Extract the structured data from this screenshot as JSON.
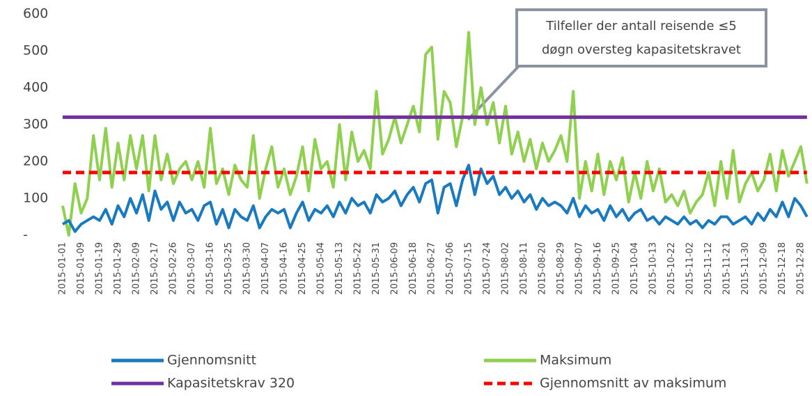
{
  "chart_data": {
    "type": "line",
    "categories": [
      "2015-01-01",
      null,
      null,
      "2015-01-09",
      null,
      null,
      "2015-01-19",
      null,
      null,
      "2015-01-29",
      null,
      null,
      "2015-02-09",
      null,
      null,
      "2015-02-17",
      null,
      null,
      "2015-02-26",
      null,
      null,
      "2015-03-07",
      null,
      null,
      "2015-03-16",
      null,
      null,
      "2015-03-25",
      null,
      null,
      "2015-03-30",
      null,
      null,
      "2015-04-07",
      null,
      null,
      "2015-04-16",
      null,
      null,
      "2015-04-25",
      null,
      null,
      "2015-05-04",
      null,
      null,
      "2015-05-13",
      null,
      null,
      "2015-05-22",
      null,
      null,
      "2015-05-31",
      null,
      null,
      "2015-06-09",
      null,
      null,
      "2015-06-18",
      null,
      null,
      "2015-06-27",
      null,
      null,
      "2015-07-06",
      null,
      null,
      "2015-07-15",
      null,
      null,
      "2015-07-24",
      null,
      null,
      "2015-08-02",
      null,
      null,
      "2015-08-11",
      null,
      null,
      "2015-08-20",
      null,
      null,
      "2015-08-29",
      null,
      null,
      "2015-09-07",
      null,
      null,
      "2015-09-16",
      null,
      null,
      "2015-09-25",
      null,
      null,
      "2015-10-04",
      null,
      null,
      "2015-10-13",
      null,
      null,
      "2015-10-22",
      null,
      null,
      "2015-11-02",
      null,
      null,
      "2015-11-12",
      null,
      null,
      "2015-11-21",
      null,
      null,
      "2015-11-30",
      null,
      null,
      "2015-12-09",
      null,
      null,
      "2015-12-18",
      null,
      null,
      "2015-12-28",
      null
    ],
    "series": [
      {
        "name": "Gjennomsnitt",
        "color": "#1a7abf",
        "values": [
          30,
          40,
          10,
          30,
          40,
          50,
          40,
          70,
          30,
          80,
          50,
          100,
          60,
          110,
          40,
          120,
          70,
          90,
          40,
          90,
          60,
          70,
          40,
          80,
          90,
          30,
          70,
          20,
          70,
          50,
          40,
          80,
          20,
          50,
          70,
          60,
          70,
          20,
          60,
          90,
          40,
          70,
          60,
          80,
          50,
          90,
          60,
          100,
          80,
          90,
          60,
          110,
          90,
          100,
          120,
          80,
          110,
          130,
          90,
          140,
          150,
          60,
          130,
          140,
          80,
          150,
          190,
          110,
          180,
          140,
          160,
          110,
          130,
          100,
          120,
          90,
          110,
          70,
          100,
          80,
          90,
          80,
          60,
          100,
          50,
          80,
          60,
          70,
          40,
          80,
          50,
          70,
          40,
          60,
          70,
          40,
          50,
          30,
          50,
          40,
          30,
          50,
          30,
          40,
          20,
          40,
          30,
          50,
          50,
          30,
          40,
          50,
          30,
          60,
          40,
          70,
          50,
          90,
          50,
          100,
          80,
          50
        ]
      },
      {
        "name": "Maksimum",
        "color": "#8fd14f",
        "values": [
          80,
          0,
          140,
          60,
          100,
          270,
          150,
          290,
          130,
          250,
          150,
          270,
          180,
          270,
          120,
          270,
          150,
          220,
          140,
          180,
          200,
          150,
          200,
          130,
          290,
          140,
          180,
          110,
          190,
          150,
          130,
          270,
          100,
          180,
          240,
          130,
          180,
          110,
          160,
          240,
          120,
          260,
          180,
          200,
          130,
          300,
          150,
          280,
          200,
          230,
          180,
          390,
          220,
          260,
          320,
          250,
          300,
          350,
          280,
          490,
          510,
          260,
          390,
          360,
          240,
          320,
          550,
          300,
          400,
          300,
          360,
          250,
          350,
          220,
          280,
          200,
          260,
          180,
          250,
          200,
          230,
          270,
          200,
          390,
          100,
          200,
          120,
          220,
          110,
          200,
          150,
          210,
          90,
          170,
          100,
          200,
          120,
          180,
          90,
          110,
          80,
          120,
          60,
          90,
          110,
          170,
          80,
          200,
          100,
          230,
          90,
          140,
          170,
          120,
          150,
          220,
          120,
          230,
          160,
          200,
          240,
          140
        ]
      }
    ],
    "hlines": [
      {
        "name": "Kapasitetskrav 320",
        "value": 320,
        "color": "#7030a0",
        "dashed": false
      },
      {
        "name": "Gjennomsnitt av maksimum",
        "value": 170,
        "color": "#ff0000",
        "dashed": true
      }
    ],
    "ylim": [
      0,
      600
    ],
    "yticks": [
      {
        "value": 0,
        "label": "-"
      },
      100,
      200,
      300,
      400,
      500,
      600
    ],
    "annotation": {
      "lines": [
        "Tilfeller der antall reisende ≤5",
        "døgn oversteg kapasitetskravet"
      ]
    }
  }
}
